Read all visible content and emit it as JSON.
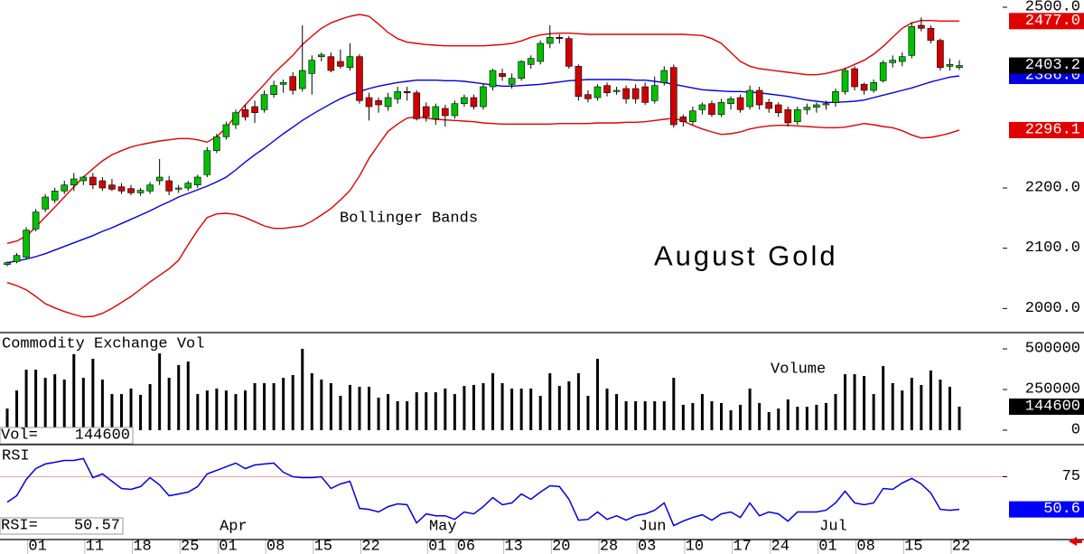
{
  "chart_data": [
    {
      "type": "candlestick",
      "title": "August Gold",
      "annotation": "Bollinger Bands",
      "up_color": "#00c000",
      "down_color": "#d00000",
      "last_color": "#000000",
      "ylim": [
        1960,
        2512
      ],
      "yticks": [
        {
          "value": 2000,
          "label": "2000.0"
        },
        {
          "value": 2100,
          "label": "2100.0"
        },
        {
          "value": 2200,
          "label": "2200.0"
        },
        {
          "value": 2500,
          "label": "2500.0"
        }
      ],
      "open": [
        2073,
        2078,
        2085,
        2132,
        2165,
        2180,
        2195,
        2205,
        2212,
        2218,
        2212,
        2205,
        2202,
        2199,
        2192,
        2195,
        2212,
        2212,
        2198,
        2200,
        2205,
        2222,
        2262,
        2285,
        2305,
        2330,
        2335,
        2330,
        2355,
        2372,
        2385,
        2365,
        2390,
        2418,
        2418,
        2410,
        2400,
        2418,
        2350,
        2345,
        2335,
        2348,
        2360,
        2358,
        2335,
        2315,
        2332,
        2320,
        2340,
        2350,
        2335,
        2368,
        2390,
        2372,
        2382,
        2405,
        2410,
        2440,
        2450,
        2448,
        2402,
        2355,
        2350,
        2370,
        2360,
        2365,
        2365,
        2368,
        2345,
        2375,
        2400,
        2318,
        2310,
        2330,
        2340,
        2322,
        2340,
        2350,
        2335,
        2362,
        2342,
        2338,
        2330,
        2310,
        2330,
        2334,
        2338,
        2342,
        2360,
        2398,
        2372,
        2362,
        2378,
        2408,
        2410,
        2420,
        2470,
        2465,
        2445,
        2402,
        2400
      ],
      "high": [
        2078,
        2092,
        2135,
        2165,
        2190,
        2200,
        2212,
        2225,
        2220,
        2225,
        2218,
        2215,
        2208,
        2205,
        2200,
        2210,
        2248,
        2220,
        2205,
        2212,
        2222,
        2268,
        2290,
        2310,
        2330,
        2338,
        2345,
        2362,
        2378,
        2380,
        2392,
        2470,
        2420,
        2425,
        2425,
        2430,
        2440,
        2422,
        2358,
        2350,
        2358,
        2368,
        2368,
        2362,
        2342,
        2340,
        2338,
        2345,
        2355,
        2355,
        2372,
        2398,
        2398,
        2390,
        2412,
        2420,
        2445,
        2470,
        2455,
        2452,
        2405,
        2362,
        2372,
        2375,
        2368,
        2370,
        2372,
        2375,
        2385,
        2402,
        2405,
        2322,
        2335,
        2342,
        2345,
        2348,
        2352,
        2355,
        2370,
        2368,
        2348,
        2342,
        2335,
        2335,
        2340,
        2342,
        2345,
        2365,
        2400,
        2402,
        2375,
        2380,
        2412,
        2420,
        2425,
        2475,
        2483,
        2470,
        2448,
        2415,
        2412
      ],
      "low": [
        2070,
        2075,
        2082,
        2128,
        2160,
        2175,
        2190,
        2195,
        2205,
        2198,
        2195,
        2195,
        2190,
        2188,
        2187,
        2190,
        2205,
        2188,
        2192,
        2195,
        2200,
        2218,
        2258,
        2280,
        2298,
        2312,
        2308,
        2325,
        2350,
        2358,
        2355,
        2360,
        2355,
        2410,
        2392,
        2398,
        2395,
        2340,
        2312,
        2325,
        2328,
        2340,
        2345,
        2312,
        2310,
        2305,
        2302,
        2315,
        2335,
        2330,
        2330,
        2362,
        2378,
        2365,
        2378,
        2398,
        2405,
        2432,
        2440,
        2398,
        2345,
        2342,
        2345,
        2352,
        2355,
        2340,
        2340,
        2338,
        2340,
        2370,
        2300,
        2302,
        2305,
        2322,
        2318,
        2318,
        2330,
        2325,
        2330,
        2330,
        2325,
        2318,
        2302,
        2305,
        2322,
        2325,
        2330,
        2335,
        2355,
        2362,
        2355,
        2358,
        2375,
        2400,
        2402,
        2415,
        2460,
        2440,
        2395,
        2395,
        2396
      ],
      "close": [
        2076,
        2088,
        2130,
        2160,
        2185,
        2195,
        2205,
        2215,
        2218,
        2205,
        2200,
        2198,
        2195,
        2192,
        2196,
        2205,
        2218,
        2195,
        2200,
        2208,
        2218,
        2262,
        2285,
        2305,
        2325,
        2318,
        2325,
        2355,
        2370,
        2375,
        2362,
        2395,
        2412,
        2421,
        2395,
        2402,
        2418,
        2345,
        2335,
        2338,
        2350,
        2360,
        2358,
        2315,
        2318,
        2335,
        2320,
        2340,
        2350,
        2335,
        2368,
        2395,
        2385,
        2382,
        2410,
        2415,
        2440,
        2450,
        2448,
        2402,
        2352,
        2348,
        2368,
        2358,
        2362,
        2348,
        2348,
        2342,
        2370,
        2395,
        2305,
        2310,
        2328,
        2338,
        2322,
        2342,
        2348,
        2330,
        2362,
        2338,
        2332,
        2325,
        2308,
        2330,
        2334,
        2338,
        2340,
        2360,
        2395,
        2368,
        2362,
        2375,
        2408,
        2412,
        2418,
        2468,
        2465,
        2445,
        2400,
        2405,
        2403.2
      ],
      "bands": [
        {
          "color": "#e00000",
          "last_label": "2477.0",
          "values": [
            2108,
            2112,
            2120,
            2135,
            2152,
            2168,
            2185,
            2202,
            2218,
            2232,
            2245,
            2255,
            2262,
            2268,
            2272,
            2275,
            2278,
            2280,
            2282,
            2282,
            2280,
            2276,
            2285,
            2300,
            2320,
            2338,
            2355,
            2372,
            2390,
            2405,
            2420,
            2438,
            2452,
            2465,
            2474,
            2480,
            2485,
            2488,
            2485,
            2472,
            2458,
            2448,
            2442,
            2440,
            2438,
            2437,
            2436,
            2436,
            2436,
            2436,
            2436,
            2437,
            2438,
            2440,
            2444,
            2450,
            2454,
            2456,
            2457,
            2457,
            2456,
            2455,
            2455,
            2455,
            2455,
            2455,
            2455,
            2455,
            2455,
            2455,
            2455,
            2455,
            2454,
            2453,
            2448,
            2440,
            2425,
            2410,
            2402,
            2398,
            2396,
            2394,
            2392,
            2390,
            2388,
            2388,
            2390,
            2394,
            2398,
            2405,
            2412,
            2422,
            2435,
            2450,
            2465,
            2474,
            2478,
            2478,
            2477,
            2477,
            2477
          ]
        },
        {
          "color": "#0000e0",
          "last_label": "2386.0",
          "values": [
            2076,
            2079,
            2082,
            2086,
            2091,
            2097,
            2103,
            2109,
            2115,
            2121,
            2128,
            2134,
            2141,
            2148,
            2155,
            2162,
            2170,
            2177,
            2185,
            2191,
            2197,
            2203,
            2210,
            2218,
            2230,
            2243,
            2255,
            2266,
            2278,
            2290,
            2301,
            2312,
            2322,
            2331,
            2340,
            2348,
            2355,
            2360,
            2365,
            2369,
            2372,
            2375,
            2377,
            2379,
            2379,
            2379,
            2378,
            2378,
            2377,
            2375,
            2373,
            2371,
            2369,
            2369,
            2370,
            2371,
            2372,
            2374,
            2376,
            2378,
            2379,
            2380,
            2380,
            2380,
            2380,
            2380,
            2379,
            2379,
            2377,
            2375,
            2372,
            2369,
            2366,
            2363,
            2362,
            2361,
            2360,
            2360,
            2359,
            2358,
            2356,
            2354,
            2352,
            2349,
            2346,
            2344,
            2342,
            2342,
            2343,
            2344,
            2346,
            2350,
            2354,
            2358,
            2362,
            2366,
            2371,
            2376,
            2380,
            2384,
            2386
          ]
        },
        {
          "color": "#e00000",
          "values": [
            2043,
            2038,
            2031,
            2020,
            2008,
            2001,
            1995,
            1990,
            1986,
            1987,
            1992,
            2000,
            2010,
            2020,
            2032,
            2044,
            2055,
            2066,
            2080,
            2106,
            2130,
            2151,
            2157,
            2158,
            2156,
            2151,
            2144,
            2137,
            2133,
            2133,
            2135,
            2137,
            2145,
            2155,
            2166,
            2180,
            2196,
            2220,
            2249,
            2272,
            2294,
            2306,
            2316,
            2318,
            2316,
            2314,
            2313,
            2312,
            2311,
            2310,
            2308,
            2307,
            2306,
            2306,
            2306,
            2306,
            2306,
            2306,
            2307,
            2307,
            2307,
            2307,
            2308,
            2308,
            2308,
            2309,
            2309,
            2310,
            2312,
            2314,
            2316,
            2311,
            2304,
            2298,
            2293,
            2289,
            2290,
            2293,
            2298,
            2301,
            2303,
            2304,
            2304,
            2303,
            2302,
            2301,
            2300,
            2300,
            2301,
            2304,
            2307,
            2305,
            2302,
            2300,
            2295,
            2288,
            2283,
            2284,
            2287,
            2291,
            2296.1
          ]
        }
      ]
    },
    {
      "type": "bar",
      "title": "Commodity Exchange Vol",
      "annotation": "Volume",
      "readout_label": "Vol=",
      "color": "#000000",
      "last_color": "#000000",
      "ylim": [
        -89000,
        600000
      ],
      "yticks": [
        0,
        250000,
        500000
      ],
      "values": [
        133000,
        244000,
        372000,
        372000,
        322000,
        344000,
        311000,
        467000,
        322000,
        439000,
        311000,
        222000,
        222000,
        256000,
        217000,
        283000,
        472000,
        322000,
        400000,
        422000,
        222000,
        244000,
        256000,
        244000,
        222000,
        244000,
        289000,
        289000,
        289000,
        322000,
        339000,
        500000,
        350000,
        311000,
        289000,
        211000,
        278000,
        267000,
        267000,
        200000,
        222000,
        178000,
        178000,
        233000,
        233000,
        233000,
        256000,
        222000,
        272000,
        278000,
        289000,
        350000,
        289000,
        256000,
        256000,
        256000,
        211000,
        350000,
        272000,
        300000,
        350000,
        211000,
        439000,
        256000,
        222000,
        178000,
        178000,
        178000,
        178000,
        178000,
        322000,
        156000,
        167000,
        222000,
        178000,
        167000,
        122000,
        156000,
        256000,
        167000,
        111000,
        133000,
        189000,
        144000,
        144000,
        156000,
        167000,
        222000,
        344000,
        344000,
        333000,
        222000,
        394000,
        289000,
        244000,
        322000,
        278000,
        367000,
        311000,
        267000,
        144600
      ]
    },
    {
      "type": "line",
      "title": "RSI",
      "readout_label": "RSI=",
      "color": "#0000e0",
      "last_color": "#0000ff",
      "last_label": "50.6",
      "grid": true,
      "grid_color": "#f0a0a0",
      "ylim": [
        28,
        99
      ],
      "yticks": [
        75
      ],
      "values": [
        56.0,
        60.8,
        73.0,
        81.1,
        84.5,
        85.8,
        87.2,
        87.2,
        88.6,
        74.3,
        77.1,
        71.6,
        66.2,
        65.5,
        67.6,
        74.3,
        68.9,
        60.8,
        62.1,
        63.5,
        67.6,
        77.1,
        79.8,
        82.5,
        85.2,
        81.1,
        83.8,
        84.5,
        85.2,
        78.4,
        75.0,
        74.3,
        74.3,
        75.0,
        66.2,
        69.6,
        71.6,
        51.3,
        50.6,
        48.6,
        52.6,
        54.7,
        54.0,
        40.4,
        47.2,
        45.8,
        45.8,
        43.1,
        48.6,
        47.2,
        52.6,
        59.4,
        54.0,
        55.4,
        62.1,
        58.1,
        63.5,
        68.2,
        67.6,
        58.1,
        42.5,
        43.1,
        48.6,
        43.1,
        45.8,
        42.5,
        45.8,
        47.2,
        49.9,
        55.4,
        38.4,
        41.8,
        44.5,
        46.5,
        42.5,
        47.2,
        48.6,
        44.5,
        55.4,
        45.8,
        48.6,
        47.2,
        41.8,
        48.6,
        48.6,
        48.6,
        49.9,
        55.4,
        64.2,
        55.4,
        54.0,
        55.4,
        66.2,
        65.5,
        70.3,
        73.7,
        69.6,
        62.8,
        50.6,
        49.9,
        50.57
      ],
      "categories": [
        null,
        null,
        null,
        "01",
        null,
        null,
        null,
        null,
        null,
        "11",
        null,
        null,
        null,
        null,
        "18",
        null,
        null,
        null,
        null,
        "25",
        null,
        null,
        null,
        "01",
        null,
        null,
        null,
        null,
        "08",
        null,
        null,
        null,
        null,
        "15",
        null,
        null,
        null,
        null,
        "22",
        null,
        null,
        null,
        null,
        null,
        null,
        "01",
        null,
        null,
        "06",
        null,
        null,
        null,
        null,
        "13",
        null,
        null,
        null,
        null,
        "20",
        null,
        null,
        null,
        null,
        "28",
        null,
        null,
        null,
        "03",
        null,
        null,
        null,
        null,
        "10",
        null,
        null,
        null,
        null,
        "17",
        null,
        null,
        null,
        "24",
        null,
        null,
        null,
        null,
        "01",
        null,
        null,
        null,
        "08",
        null,
        null,
        null,
        null,
        "15",
        null,
        null,
        null,
        null,
        "22"
      ],
      "month_ticks": [
        {
          "value": 23,
          "label": "Apr"
        },
        {
          "value": 45,
          "label": "May"
        },
        {
          "value": 67,
          "label": "Jun"
        },
        {
          "value": 86,
          "label": "Jul"
        }
      ]
    }
  ]
}
